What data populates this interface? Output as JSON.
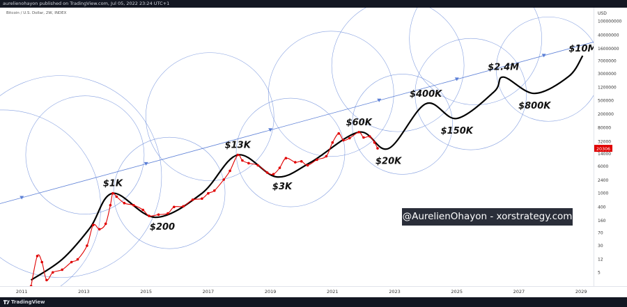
{
  "header": {
    "published_text": "aurelienohayon published on TradingView.com, Jul 05, 2022 23:24 UTC+1"
  },
  "symbol": {
    "title": "Bitcoin / U.S. Dollar, 2W, INDEX"
  },
  "footer": {
    "logo_text": "TradingView"
  },
  "watermark": {
    "text": "@AurelienOhayon - xorstrategy.com"
  },
  "colors": {
    "price": "#e00000",
    "projection": "#000000",
    "circles": "#5b7fd6",
    "trendline": "#5b7fd6",
    "price_tag": "#e00000",
    "bar": "#131722"
  },
  "chart_data": {
    "type": "line",
    "title": "Bitcoin / U.S. Dollar, 2W, INDEX",
    "xlabel": "",
    "ylabel": "",
    "y_scale": "log",
    "y_unit": "USD",
    "ylim": [
      2,
      250000000
    ],
    "xlim": [
      2010.3,
      2029.4
    ],
    "x_ticks": [
      "2011",
      "2013",
      "2015",
      "2017",
      "2019",
      "2021",
      "2023",
      "2025",
      "2027",
      "2029"
    ],
    "y_ticks": [
      "100000000",
      "40000000",
      "16000000",
      "7000000",
      "3000000",
      "1200000",
      "500000",
      "200000",
      "80000",
      "32000",
      "14000",
      "6000",
      "2400",
      "1000",
      "400",
      "160",
      "70",
      "30",
      "12",
      "5"
    ],
    "current_price_label": "20306",
    "current_price": 20306,
    "series": [
      {
        "values": [
          [
            2011.3,
            2.0
          ],
          [
            2011.5,
            15.0
          ],
          [
            2011.65,
            10.0
          ],
          [
            2011.8,
            3.0
          ],
          [
            2012.0,
            5.0
          ],
          [
            2012.3,
            6.0
          ],
          [
            2012.6,
            10.0
          ],
          [
            2012.8,
            12.0
          ],
          [
            2013.1,
            30.0
          ],
          [
            2013.3,
            120.0
          ],
          [
            2013.5,
            90.0
          ],
          [
            2013.7,
            130.0
          ],
          [
            2013.85,
            450.0
          ],
          [
            2013.93,
            1000.0
          ],
          [
            2014.05,
            800.0
          ],
          [
            2014.3,
            520.0
          ],
          [
            2014.6,
            450.0
          ],
          [
            2014.9,
            330.0
          ],
          [
            2015.1,
            220.0
          ],
          [
            2015.4,
            240.0
          ],
          [
            2015.7,
            260.0
          ],
          [
            2015.9,
            400.0
          ],
          [
            2016.2,
            420.0
          ],
          [
            2016.5,
            650.0
          ],
          [
            2016.8,
            700.0
          ],
          [
            2017.0,
            1000.0
          ],
          [
            2017.2,
            1200.0
          ],
          [
            2017.5,
            2500.0
          ],
          [
            2017.7,
            4500.0
          ],
          [
            2017.95,
            13000.0
          ],
          [
            2018.1,
            9000.0
          ],
          [
            2018.3,
            7500.0
          ],
          [
            2018.6,
            6500.0
          ],
          [
            2018.9,
            4000.0
          ],
          [
            2019.1,
            3600.0
          ],
          [
            2019.3,
            5500.0
          ],
          [
            2019.5,
            10500.0
          ],
          [
            2019.8,
            8000.0
          ],
          [
            2020.0,
            8500.0
          ],
          [
            2020.2,
            6500.0
          ],
          [
            2020.5,
            9500.0
          ],
          [
            2020.8,
            12000.0
          ],
          [
            2021.0,
            30000.0
          ],
          [
            2021.2,
            55000.0
          ],
          [
            2021.35,
            35000.0
          ],
          [
            2021.55,
            40000.0
          ],
          [
            2021.85,
            60000.0
          ],
          [
            2022.0,
            42000.0
          ],
          [
            2022.2,
            45000.0
          ],
          [
            2022.35,
            30000.0
          ],
          [
            2022.45,
            20306.0
          ]
        ]
      },
      {
        "values": [
          [
            2011.3,
            3.0
          ],
          [
            2012.3,
            12.0
          ],
          [
            2013.2,
            100.0
          ],
          [
            2013.93,
            1000.0
          ],
          [
            2015.3,
            200.0
          ],
          [
            2016.8,
            1000.0
          ],
          [
            2017.95,
            13000.0
          ],
          [
            2019.2,
            3000.0
          ],
          [
            2020.3,
            8000.0
          ],
          [
            2021.85,
            60000.0
          ],
          [
            2022.8,
            20000.0
          ],
          [
            2024.0,
            400000.0
          ],
          [
            2025.0,
            150000.0
          ],
          [
            2026.2,
            900000.0
          ],
          [
            2026.5,
            2400000.0
          ],
          [
            2027.5,
            800000.0
          ],
          [
            2028.6,
            2500000.0
          ],
          [
            2029.05,
            10000000.0
          ]
        ]
      }
    ],
    "annotations": [
      {
        "text": "$1K",
        "x": 2013.93,
        "y": 1000
      },
      {
        "text": "$200",
        "x": 2015.3,
        "y": 200
      },
      {
        "text": "$13K",
        "x": 2017.95,
        "y": 13000
      },
      {
        "text": "$3K",
        "x": 2019.2,
        "y": 3000
      },
      {
        "text": "$60K",
        "x": 2021.85,
        "y": 60000
      },
      {
        "text": "$20K",
        "x": 2022.8,
        "y": 20000
      },
      {
        "text": "$400K",
        "x": 2024.0,
        "y": 400000
      },
      {
        "text": "$150K",
        "x": 2025.0,
        "y": 150000
      },
      {
        "text": "$2.4M",
        "x": 2026.5,
        "y": 2400000
      },
      {
        "text": "$800K",
        "x": 2027.5,
        "y": 800000
      },
      {
        "text": "$10M",
        "x": 2029.05,
        "y": 10000000
      }
    ]
  }
}
